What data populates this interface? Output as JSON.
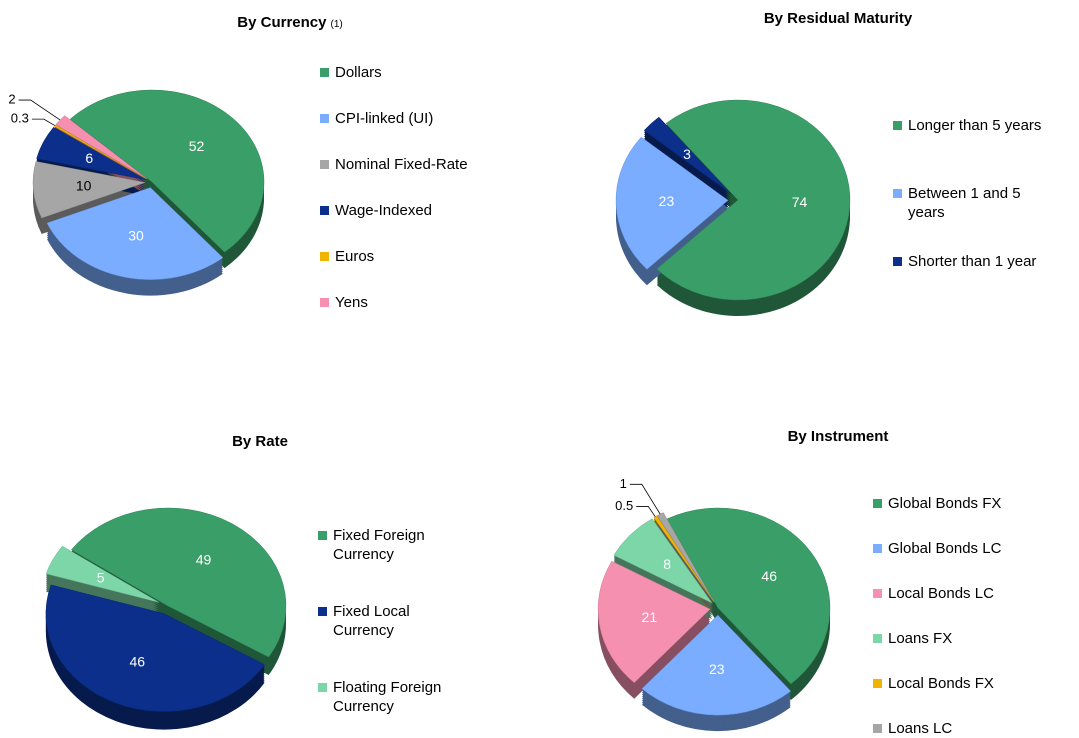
{
  "chart_data": [
    {
      "type": "pie",
      "title": "By Currency",
      "title_note": "(1)",
      "categories": [
        "Dollars",
        "CPI-linked (UI)",
        "Nominal Fixed-Rate",
        "Wage-Indexed",
        "Euros",
        "Yens"
      ],
      "values": [
        52,
        30,
        10,
        6,
        0.3,
        2
      ],
      "colors": [
        "#3a9e68",
        "#7aadff",
        "#a6a6a6",
        "#0b2f8a",
        "#f0b400",
        "#f590b0"
      ]
    },
    {
      "type": "pie",
      "title": "By Residual Maturity",
      "categories": [
        "Longer than 5 years",
        "Between 1 and 5 years",
        "Shorter than 1 year"
      ],
      "values": [
        74,
        23,
        3
      ],
      "colors": [
        "#3a9e68",
        "#7aadff",
        "#0b2f8a"
      ]
    },
    {
      "type": "pie",
      "title": "By Rate",
      "categories": [
        "Fixed Foreign Currency",
        "Fixed Local Currency",
        "Floating Foreign Currency"
      ],
      "values": [
        49,
        46,
        5
      ],
      "colors": [
        "#3a9e68",
        "#0b2f8a",
        "#7dd6a8"
      ]
    },
    {
      "type": "pie",
      "title": "By Instrument",
      "categories": [
        "Global Bonds FX",
        "Global Bonds LC",
        "Local Bonds LC",
        "Loans FX",
        "Local Bonds FX",
        "Loans LC"
      ],
      "values": [
        46,
        23,
        21,
        8,
        0.5,
        1
      ],
      "colors": [
        "#3a9e68",
        "#7aadff",
        "#f590b0",
        "#7dd6a8",
        "#f0b400",
        "#a6a6a6"
      ]
    }
  ]
}
